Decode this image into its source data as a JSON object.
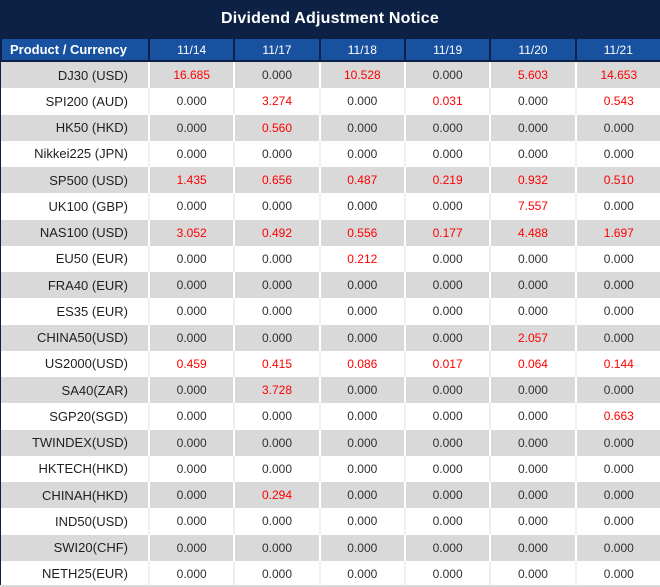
{
  "title": "Dividend Adjustment Notice",
  "header": {
    "product_label": "Product / Currency",
    "dates": [
      "11/14",
      "11/17",
      "11/18",
      "11/19",
      "11/20",
      "11/21"
    ]
  },
  "colors": {
    "navy_background": "#0d2144",
    "header_blue": "#17519f",
    "row_gray": "#d9d9d9",
    "row_white": "#ffffff",
    "value_nonzero_red": "#fe0000",
    "value_zero_dark": "#303030",
    "header_text": "#ffffff"
  },
  "rows": [
    {
      "product": "DJ30 (USD)",
      "values": [
        "16.685",
        "0.000",
        "10.528",
        "0.000",
        "5.603",
        "14.653"
      ]
    },
    {
      "product": "SPI200 (AUD)",
      "values": [
        "0.000",
        "3.274",
        "0.000",
        "0.031",
        "0.000",
        "0.543"
      ]
    },
    {
      "product": "HK50 (HKD)",
      "values": [
        "0.000",
        "0.560",
        "0.000",
        "0.000",
        "0.000",
        "0.000"
      ]
    },
    {
      "product": "Nikkei225 (JPN)",
      "values": [
        "0.000",
        "0.000",
        "0.000",
        "0.000",
        "0.000",
        "0.000"
      ]
    },
    {
      "product": "SP500 (USD)",
      "values": [
        "1.435",
        "0.656",
        "0.487",
        "0.219",
        "0.932",
        "0.510"
      ]
    },
    {
      "product": "UK100 (GBP)",
      "values": [
        "0.000",
        "0.000",
        "0.000",
        "0.000",
        "7.557",
        "0.000"
      ]
    },
    {
      "product": "NAS100 (USD)",
      "values": [
        "3.052",
        "0.492",
        "0.556",
        "0.177",
        "4.488",
        "1.697"
      ]
    },
    {
      "product": "EU50 (EUR)",
      "values": [
        "0.000",
        "0.000",
        "0.212",
        "0.000",
        "0.000",
        "0.000"
      ]
    },
    {
      "product": "FRA40 (EUR)",
      "values": [
        "0.000",
        "0.000",
        "0.000",
        "0.000",
        "0.000",
        "0.000"
      ]
    },
    {
      "product": "ES35 (EUR)",
      "values": [
        "0.000",
        "0.000",
        "0.000",
        "0.000",
        "0.000",
        "0.000"
      ]
    },
    {
      "product": "CHINA50(USD)",
      "values": [
        "0.000",
        "0.000",
        "0.000",
        "0.000",
        "2.057",
        "0.000"
      ]
    },
    {
      "product": "US2000(USD)",
      "values": [
        "0.459",
        "0.415",
        "0.086",
        "0.017",
        "0.064",
        "0.144"
      ]
    },
    {
      "product": "SA40(ZAR)",
      "values": [
        "0.000",
        "3.728",
        "0.000",
        "0.000",
        "0.000",
        "0.000"
      ]
    },
    {
      "product": "SGP20(SGD)",
      "values": [
        "0.000",
        "0.000",
        "0.000",
        "0.000",
        "0.000",
        "0.663"
      ]
    },
    {
      "product": "TWINDEX(USD)",
      "values": [
        "0.000",
        "0.000",
        "0.000",
        "0.000",
        "0.000",
        "0.000"
      ]
    },
    {
      "product": "HKTECH(HKD)",
      "values": [
        "0.000",
        "0.000",
        "0.000",
        "0.000",
        "0.000",
        "0.000"
      ]
    },
    {
      "product": "CHINAH(HKD)",
      "values": [
        "0.000",
        "0.294",
        "0.000",
        "0.000",
        "0.000",
        "0.000"
      ]
    },
    {
      "product": "IND50(USD)",
      "values": [
        "0.000",
        "0.000",
        "0.000",
        "0.000",
        "0.000",
        "0.000"
      ]
    },
    {
      "product": "SWI20(CHF)",
      "values": [
        "0.000",
        "0.000",
        "0.000",
        "0.000",
        "0.000",
        "0.000"
      ]
    },
    {
      "product": "NETH25(EUR)",
      "values": [
        "0.000",
        "0.000",
        "0.000",
        "0.000",
        "0.000",
        "0.000"
      ]
    }
  ]
}
